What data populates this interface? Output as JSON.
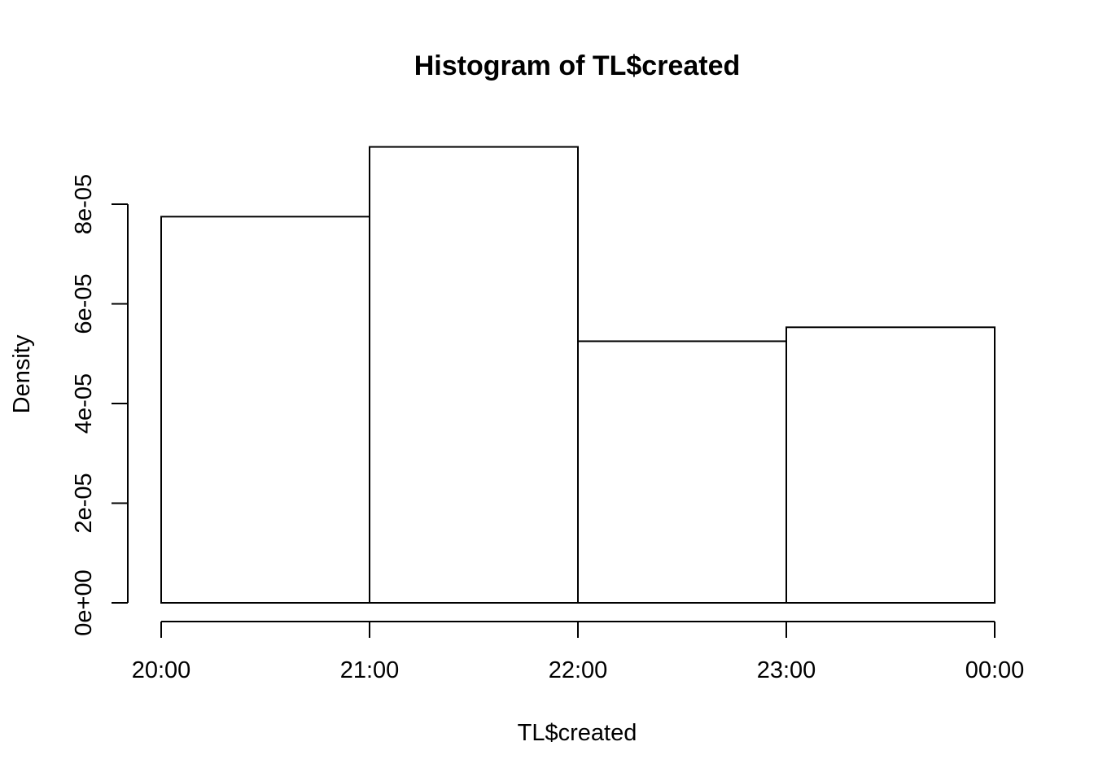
{
  "chart_data": {
    "type": "bar",
    "title": "Histogram of TL$created",
    "xlabel": "TL$created",
    "ylabel": "Density",
    "bins": [
      {
        "start": "20:00",
        "end": "21:00",
        "density": 7.75e-05
      },
      {
        "start": "21:00",
        "end": "22:00",
        "density": 9.15e-05
      },
      {
        "start": "22:00",
        "end": "23:00",
        "density": 5.25e-05
      },
      {
        "start": "23:00",
        "end": "00:00",
        "density": 5.53e-05
      }
    ],
    "x_ticks": [
      "20:00",
      "21:00",
      "22:00",
      "23:00",
      "00:00"
    ],
    "y_ticks": [
      {
        "value": 0,
        "label": "0e+00"
      },
      {
        "value": 2e-05,
        "label": "2e-05"
      },
      {
        "value": 4e-05,
        "label": "4e-05"
      },
      {
        "value": 6e-05,
        "label": "6e-05"
      },
      {
        "value": 8e-05,
        "label": "8e-05"
      }
    ],
    "grid": false,
    "legend": "none"
  }
}
